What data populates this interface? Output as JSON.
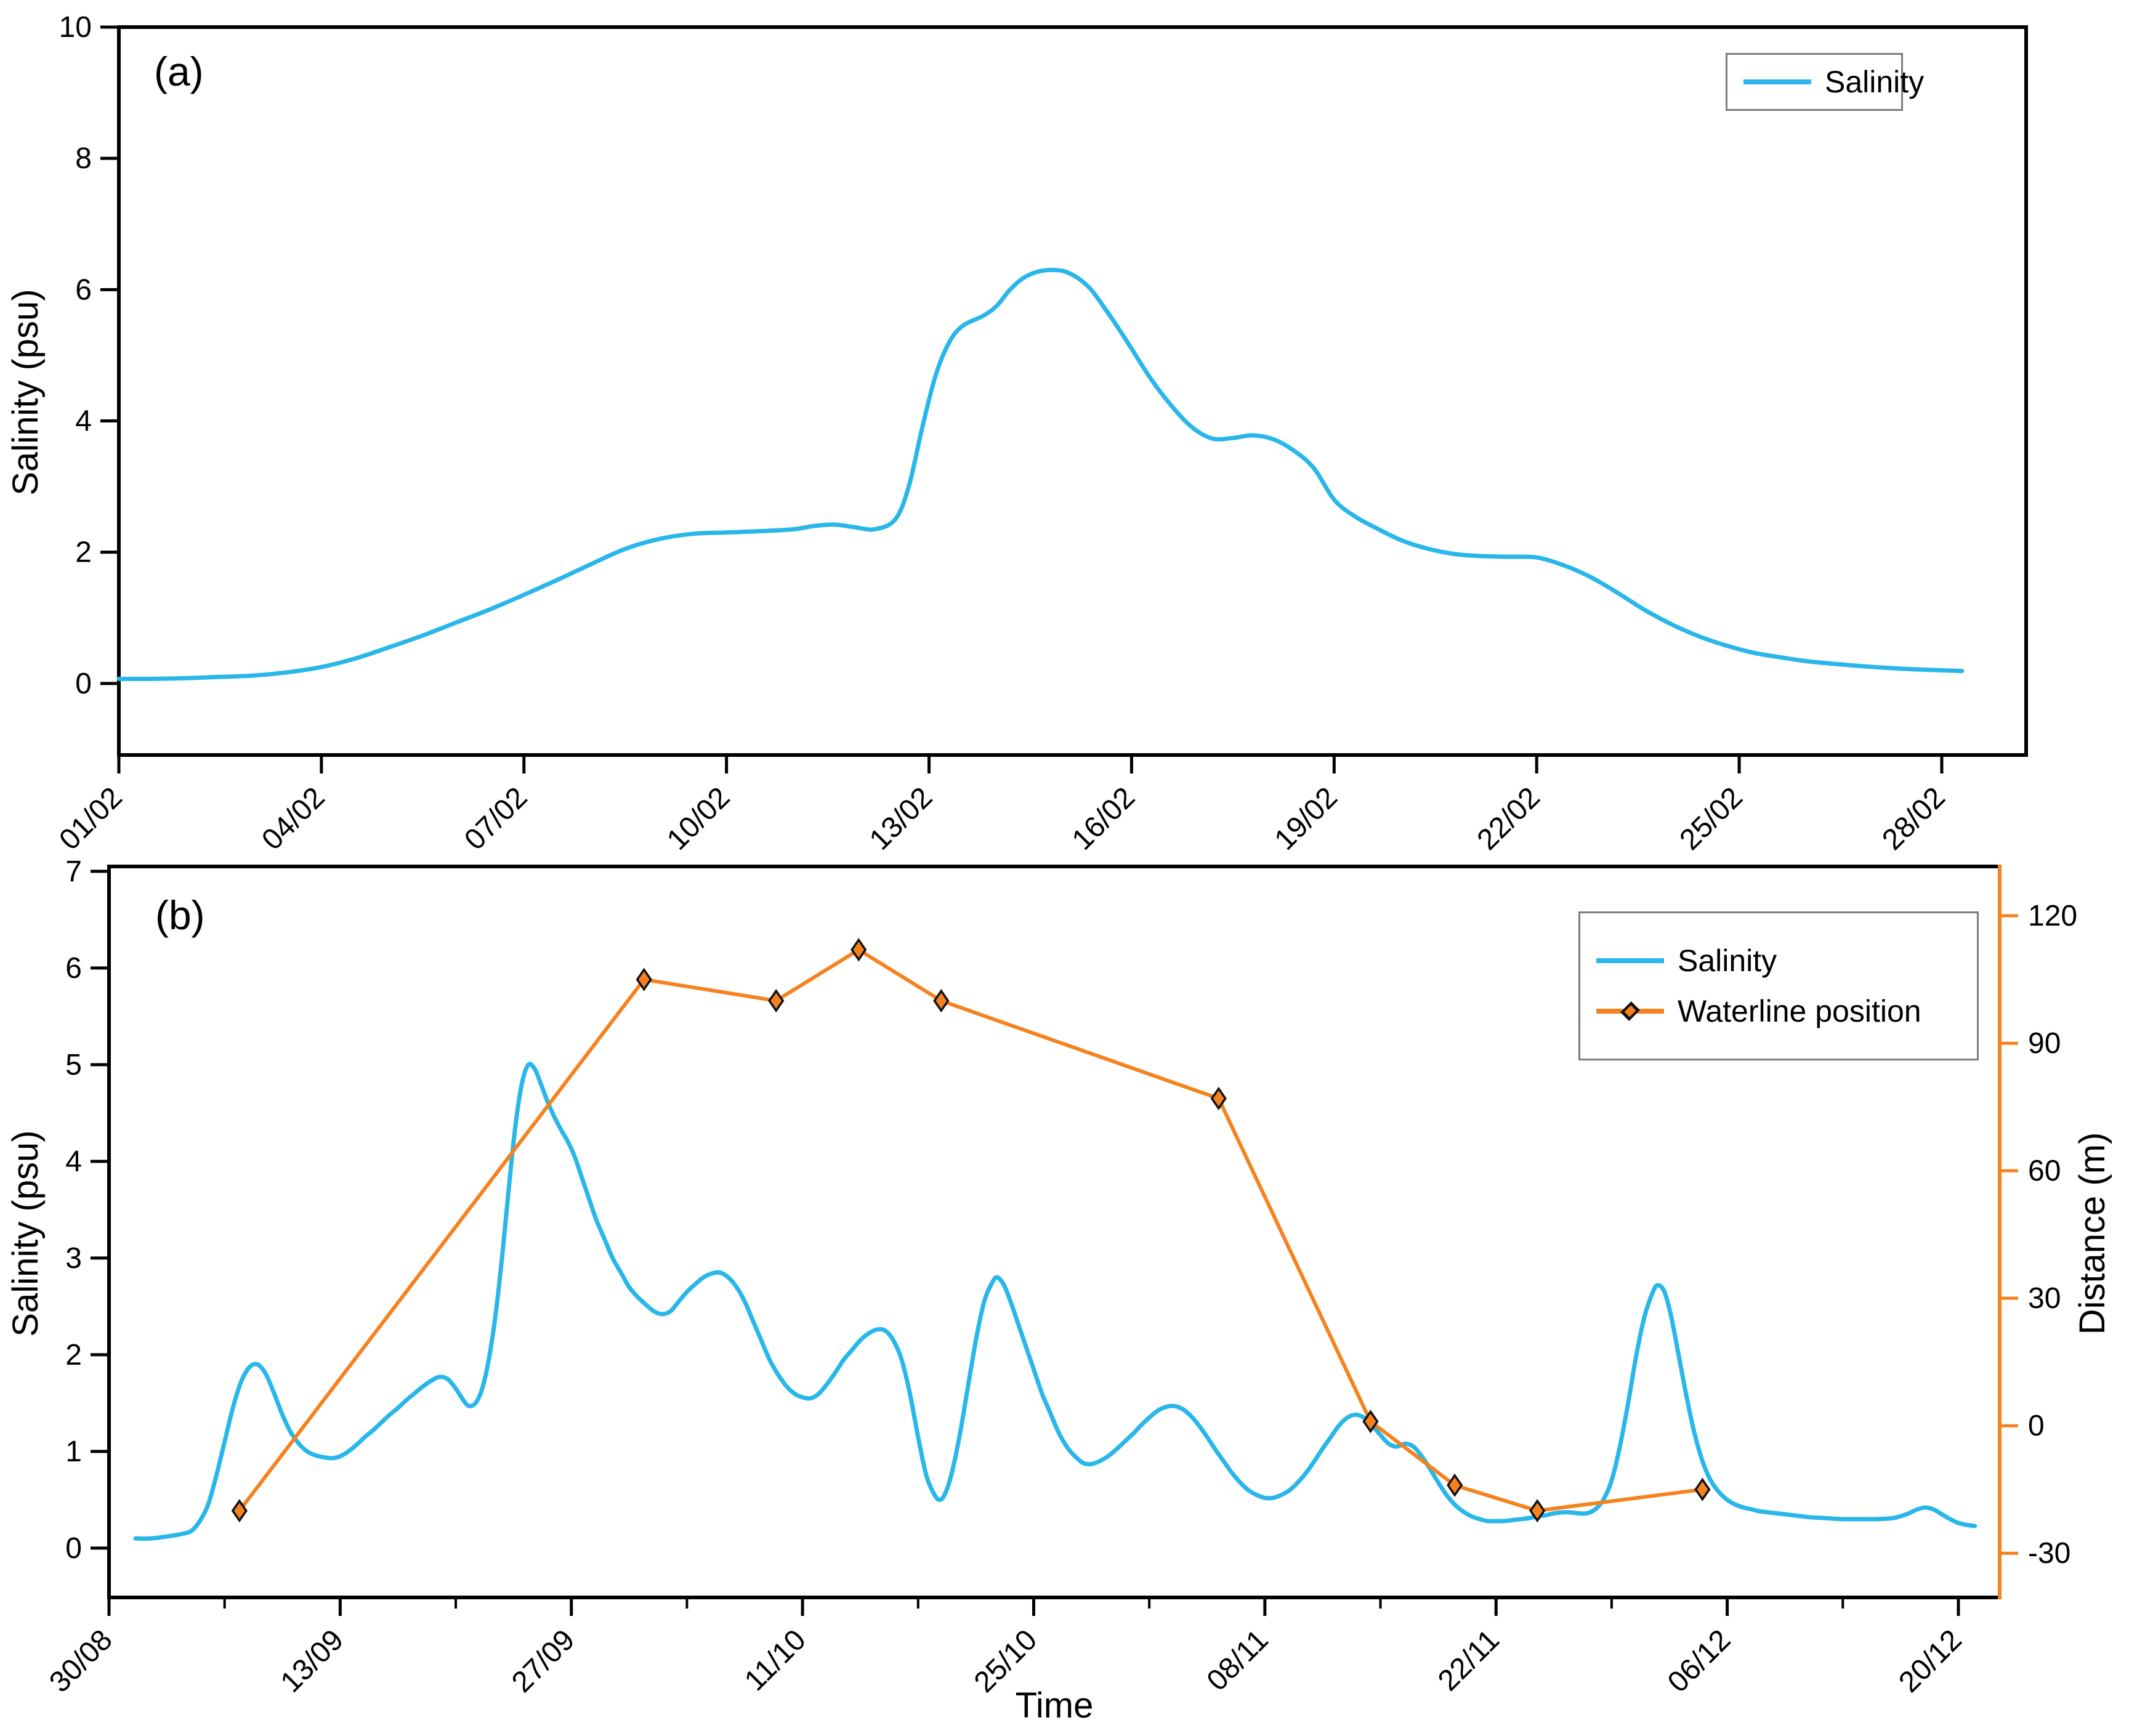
{
  "figure": {
    "panel_a": {
      "letter": "(a)",
      "y_title": "Salinity (psu)",
      "legend": [
        "Salinity"
      ]
    },
    "panel_b": {
      "letter": "(b)",
      "y_title": "Salinity (psu)",
      "y2_title": "Distance (m)",
      "x_title": "Time",
      "legend": [
        "Salinity",
        "Waterline position"
      ]
    }
  },
  "colors": {
    "salinity": "#29B7EA",
    "waterline": "#F5821F",
    "axis": "#000000",
    "legend_border": "#7d7d7d"
  },
  "chart_data": [
    {
      "panel": "a",
      "type": "line",
      "series_name": "Salinity",
      "xlabel": "",
      "ylabel": "Salinity (psu)",
      "x_unit": "days since 01/02",
      "x_range": [
        0,
        28.25
      ],
      "y_range": [
        -1.09,
        10
      ],
      "y_ticks": [
        0,
        2,
        4,
        6,
        8,
        10
      ],
      "x_tick_days": [
        0,
        3,
        6,
        9,
        12,
        15,
        18,
        21,
        24,
        27
      ],
      "x_tick_labels": [
        "01/02",
        "04/02",
        "07/02",
        "10/02",
        "13/02",
        "16/02",
        "19/02",
        "22/02",
        "25/02",
        "28/02"
      ],
      "grid": false,
      "legend_position": "top-right",
      "points": [
        [
          0,
          0.07
        ],
        [
          0.5,
          0.07
        ],
        [
          1,
          0.08
        ],
        [
          1.5,
          0.1
        ],
        [
          2,
          0.12
        ],
        [
          2.5,
          0.17
        ],
        [
          3,
          0.25
        ],
        [
          3.5,
          0.38
        ],
        [
          4,
          0.55
        ],
        [
          4.5,
          0.73
        ],
        [
          5,
          0.93
        ],
        [
          5.5,
          1.13
        ],
        [
          6,
          1.35
        ],
        [
          6.5,
          1.58
        ],
        [
          7,
          1.82
        ],
        [
          7.5,
          2.05
        ],
        [
          8,
          2.2
        ],
        [
          8.5,
          2.28
        ],
        [
          9,
          2.3
        ],
        [
          9.5,
          2.32
        ],
        [
          10,
          2.35
        ],
        [
          10.3,
          2.4
        ],
        [
          10.6,
          2.42
        ],
        [
          10.9,
          2.38
        ],
        [
          11.2,
          2.35
        ],
        [
          11.5,
          2.5
        ],
        [
          11.7,
          3.0
        ],
        [
          11.9,
          3.9
        ],
        [
          12.1,
          4.7
        ],
        [
          12.3,
          5.2
        ],
        [
          12.5,
          5.45
        ],
        [
          12.8,
          5.6
        ],
        [
          13,
          5.75
        ],
        [
          13.2,
          6.0
        ],
        [
          13.4,
          6.18
        ],
        [
          13.6,
          6.27
        ],
        [
          13.8,
          6.3
        ],
        [
          14,
          6.28
        ],
        [
          14.2,
          6.18
        ],
        [
          14.4,
          6.0
        ],
        [
          14.6,
          5.72
        ],
        [
          14.8,
          5.42
        ],
        [
          15,
          5.1
        ],
        [
          15.3,
          4.62
        ],
        [
          15.6,
          4.22
        ],
        [
          15.9,
          3.9
        ],
        [
          16.2,
          3.73
        ],
        [
          16.5,
          3.74
        ],
        [
          16.8,
          3.78
        ],
        [
          17.1,
          3.72
        ],
        [
          17.4,
          3.55
        ],
        [
          17.7,
          3.28
        ],
        [
          18,
          2.8
        ],
        [
          18.3,
          2.55
        ],
        [
          18.6,
          2.38
        ],
        [
          19,
          2.18
        ],
        [
          19.4,
          2.05
        ],
        [
          19.8,
          1.97
        ],
        [
          20.2,
          1.94
        ],
        [
          20.6,
          1.93
        ],
        [
          21,
          1.92
        ],
        [
          21.4,
          1.8
        ],
        [
          21.8,
          1.62
        ],
        [
          22.2,
          1.38
        ],
        [
          22.6,
          1.12
        ],
        [
          23,
          0.9
        ],
        [
          23.4,
          0.72
        ],
        [
          23.8,
          0.58
        ],
        [
          24.2,
          0.47
        ],
        [
          24.6,
          0.4
        ],
        [
          25,
          0.34
        ],
        [
          25.5,
          0.29
        ],
        [
          26,
          0.25
        ],
        [
          26.5,
          0.22
        ],
        [
          27,
          0.2
        ],
        [
          27.3,
          0.19
        ]
      ]
    },
    {
      "panel": "b",
      "type": "line",
      "series_name": "Salinity",
      "xlabel": "Time",
      "ylabel": "Salinity (psu)",
      "x_unit": "days since 30/08",
      "x_range": [
        0,
        114.5
      ],
      "y_range": [
        -0.51,
        7.05
      ],
      "y_ticks": [
        0,
        1,
        2,
        3,
        4,
        5,
        6,
        7
      ],
      "x_tick_days": [
        0,
        14,
        28,
        42,
        56,
        70,
        84,
        98,
        112
      ],
      "x_tick_labels": [
        "30/08",
        "13/09",
        "27/09",
        "11/10",
        "25/10",
        "08/11",
        "22/11",
        "06/12",
        "20/12"
      ],
      "x_minor_tick_days": [
        7,
        21,
        35,
        49,
        63,
        77,
        91,
        105
      ],
      "grid": false,
      "legend_position": "top-right",
      "points": [
        [
          1.6,
          0.1
        ],
        [
          2.5,
          0.1
        ],
        [
          3.5,
          0.12
        ],
        [
          4.5,
          0.15
        ],
        [
          5,
          0.18
        ],
        [
          5.5,
          0.28
        ],
        [
          6,
          0.45
        ],
        [
          6.5,
          0.75
        ],
        [
          7,
          1.1
        ],
        [
          7.5,
          1.45
        ],
        [
          8,
          1.72
        ],
        [
          8.5,
          1.87
        ],
        [
          9,
          1.9
        ],
        [
          9.5,
          1.8
        ],
        [
          10,
          1.6
        ],
        [
          10.5,
          1.38
        ],
        [
          11,
          1.2
        ],
        [
          11.5,
          1.08
        ],
        [
          12,
          1.0
        ],
        [
          12.5,
          0.96
        ],
        [
          13,
          0.94
        ],
        [
          13.5,
          0.93
        ],
        [
          14,
          0.95
        ],
        [
          14.5,
          1.0
        ],
        [
          15,
          1.07
        ],
        [
          15.5,
          1.15
        ],
        [
          16,
          1.22
        ],
        [
          16.5,
          1.3
        ],
        [
          17,
          1.38
        ],
        [
          17.5,
          1.45
        ],
        [
          18,
          1.53
        ],
        [
          18.5,
          1.6
        ],
        [
          19,
          1.67
        ],
        [
          19.5,
          1.73
        ],
        [
          20,
          1.77
        ],
        [
          20.5,
          1.75
        ],
        [
          21,
          1.65
        ],
        [
          21.5,
          1.52
        ],
        [
          21.8,
          1.47
        ],
        [
          22.2,
          1.5
        ],
        [
          22.6,
          1.65
        ],
        [
          23,
          1.95
        ],
        [
          23.4,
          2.4
        ],
        [
          23.8,
          3.0
        ],
        [
          24.2,
          3.7
        ],
        [
          24.6,
          4.35
        ],
        [
          25,
          4.8
        ],
        [
          25.4,
          5.0
        ],
        [
          25.8,
          4.95
        ],
        [
          26.2,
          4.78
        ],
        [
          26.6,
          4.6
        ],
        [
          27,
          4.45
        ],
        [
          27.4,
          4.32
        ],
        [
          27.8,
          4.2
        ],
        [
          28.2,
          4.05
        ],
        [
          28.6,
          3.85
        ],
        [
          29,
          3.65
        ],
        [
          29.5,
          3.4
        ],
        [
          30,
          3.2
        ],
        [
          30.5,
          3.0
        ],
        [
          31,
          2.85
        ],
        [
          31.5,
          2.7
        ],
        [
          32,
          2.6
        ],
        [
          32.5,
          2.52
        ],
        [
          33,
          2.45
        ],
        [
          33.5,
          2.42
        ],
        [
          34,
          2.45
        ],
        [
          34.5,
          2.55
        ],
        [
          35,
          2.65
        ],
        [
          35.5,
          2.73
        ],
        [
          36,
          2.8
        ],
        [
          36.5,
          2.84
        ],
        [
          37,
          2.85
        ],
        [
          37.5,
          2.8
        ],
        [
          38,
          2.7
        ],
        [
          38.5,
          2.55
        ],
        [
          39,
          2.35
        ],
        [
          39.5,
          2.15
        ],
        [
          40,
          1.95
        ],
        [
          40.5,
          1.8
        ],
        [
          41,
          1.68
        ],
        [
          41.5,
          1.6
        ],
        [
          42,
          1.56
        ],
        [
          42.5,
          1.55
        ],
        [
          43,
          1.6
        ],
        [
          43.5,
          1.7
        ],
        [
          44,
          1.82
        ],
        [
          44.5,
          1.95
        ],
        [
          45,
          2.05
        ],
        [
          45.5,
          2.15
        ],
        [
          46,
          2.22
        ],
        [
          46.5,
          2.26
        ],
        [
          47,
          2.25
        ],
        [
          47.5,
          2.15
        ],
        [
          48,
          1.95
        ],
        [
          48.5,
          1.6
        ],
        [
          49,
          1.15
        ],
        [
          49.5,
          0.75
        ],
        [
          50,
          0.55
        ],
        [
          50.3,
          0.5
        ],
        [
          50.6,
          0.55
        ],
        [
          51,
          0.75
        ],
        [
          51.5,
          1.15
        ],
        [
          52,
          1.65
        ],
        [
          52.5,
          2.15
        ],
        [
          53,
          2.55
        ],
        [
          53.5,
          2.75
        ],
        [
          53.8,
          2.8
        ],
        [
          54.2,
          2.72
        ],
        [
          54.6,
          2.55
        ],
        [
          55,
          2.35
        ],
        [
          55.5,
          2.1
        ],
        [
          56,
          1.85
        ],
        [
          56.5,
          1.6
        ],
        [
          57,
          1.4
        ],
        [
          57.5,
          1.2
        ],
        [
          58,
          1.05
        ],
        [
          58.5,
          0.95
        ],
        [
          59,
          0.88
        ],
        [
          59.5,
          0.87
        ],
        [
          60,
          0.9
        ],
        [
          60.5,
          0.95
        ],
        [
          61,
          1.02
        ],
        [
          61.5,
          1.1
        ],
        [
          62,
          1.18
        ],
        [
          62.5,
          1.27
        ],
        [
          63,
          1.35
        ],
        [
          63.5,
          1.42
        ],
        [
          64,
          1.46
        ],
        [
          64.5,
          1.47
        ],
        [
          65,
          1.44
        ],
        [
          65.5,
          1.37
        ],
        [
          66,
          1.27
        ],
        [
          66.5,
          1.15
        ],
        [
          67,
          1.02
        ],
        [
          67.5,
          0.9
        ],
        [
          68,
          0.78
        ],
        [
          68.5,
          0.68
        ],
        [
          69,
          0.6
        ],
        [
          69.5,
          0.55
        ],
        [
          70,
          0.52
        ],
        [
          70.5,
          0.52
        ],
        [
          71,
          0.55
        ],
        [
          71.5,
          0.6
        ],
        [
          72,
          0.68
        ],
        [
          72.5,
          0.78
        ],
        [
          73,
          0.9
        ],
        [
          73.5,
          1.03
        ],
        [
          74,
          1.15
        ],
        [
          74.5,
          1.27
        ],
        [
          75,
          1.35
        ],
        [
          75.5,
          1.38
        ],
        [
          76,
          1.35
        ],
        [
          76.5,
          1.27
        ],
        [
          77,
          1.17
        ],
        [
          77.5,
          1.08
        ],
        [
          78,
          1.05
        ],
        [
          78.5,
          1.08
        ],
        [
          79,
          1.05
        ],
        [
          79.5,
          0.95
        ],
        [
          80,
          0.82
        ],
        [
          80.5,
          0.68
        ],
        [
          81,
          0.55
        ],
        [
          81.5,
          0.45
        ],
        [
          82,
          0.38
        ],
        [
          82.5,
          0.33
        ],
        [
          83,
          0.3
        ],
        [
          83.5,
          0.28
        ],
        [
          84,
          0.28
        ],
        [
          84.5,
          0.28
        ],
        [
          85,
          0.29
        ],
        [
          85.5,
          0.3
        ],
        [
          86,
          0.31
        ],
        [
          86.5,
          0.33
        ],
        [
          87,
          0.34
        ],
        [
          87.5,
          0.36
        ],
        [
          88,
          0.37
        ],
        [
          88.5,
          0.37
        ],
        [
          89,
          0.36
        ],
        [
          89.5,
          0.36
        ],
        [
          90,
          0.4
        ],
        [
          90.5,
          0.5
        ],
        [
          91,
          0.7
        ],
        [
          91.5,
          1.05
        ],
        [
          92,
          1.5
        ],
        [
          92.5,
          2.0
        ],
        [
          93,
          2.4
        ],
        [
          93.5,
          2.65
        ],
        [
          93.8,
          2.72
        ],
        [
          94.2,
          2.65
        ],
        [
          94.6,
          2.4
        ],
        [
          95,
          2.05
        ],
        [
          95.5,
          1.6
        ],
        [
          96,
          1.2
        ],
        [
          96.5,
          0.9
        ],
        [
          97,
          0.7
        ],
        [
          97.5,
          0.58
        ],
        [
          98,
          0.5
        ],
        [
          98.5,
          0.45
        ],
        [
          99,
          0.42
        ],
        [
          99.5,
          0.4
        ],
        [
          100,
          0.38
        ],
        [
          101,
          0.36
        ],
        [
          102,
          0.34
        ],
        [
          103,
          0.32
        ],
        [
          104,
          0.31
        ],
        [
          105,
          0.3
        ],
        [
          106,
          0.3
        ],
        [
          107,
          0.3
        ],
        [
          108,
          0.31
        ],
        [
          108.5,
          0.33
        ],
        [
          109,
          0.36
        ],
        [
          109.5,
          0.4
        ],
        [
          110,
          0.42
        ],
        [
          110.5,
          0.4
        ],
        [
          111,
          0.35
        ],
        [
          111.5,
          0.3
        ],
        [
          112,
          0.26
        ],
        [
          112.5,
          0.24
        ],
        [
          113,
          0.23
        ]
      ]
    },
    {
      "panel": "b",
      "type": "line",
      "marker": "diamond",
      "axis": "right",
      "series_name": "Waterline position",
      "ylabel": "Distance (m)",
      "x_unit": "days since 30/08",
      "y_range": [
        -40.4,
        131.6
      ],
      "y_ticks": [
        -30,
        0,
        30,
        60,
        90,
        120
      ],
      "dates": [
        "07/09",
        "01/10",
        "09/10",
        "14/10",
        "19/10",
        "05/11",
        "14/11",
        "20/11",
        "25/11",
        "04/12"
      ],
      "points": [
        [
          7.9,
          -20
        ],
        [
          32.4,
          105
        ],
        [
          40.4,
          100
        ],
        [
          45.4,
          112
        ],
        [
          50.4,
          100
        ],
        [
          67.2,
          77
        ],
        [
          76.4,
          1
        ],
        [
          81.5,
          -14
        ],
        [
          86.5,
          -20
        ],
        [
          96.5,
          -15
        ]
      ]
    }
  ]
}
